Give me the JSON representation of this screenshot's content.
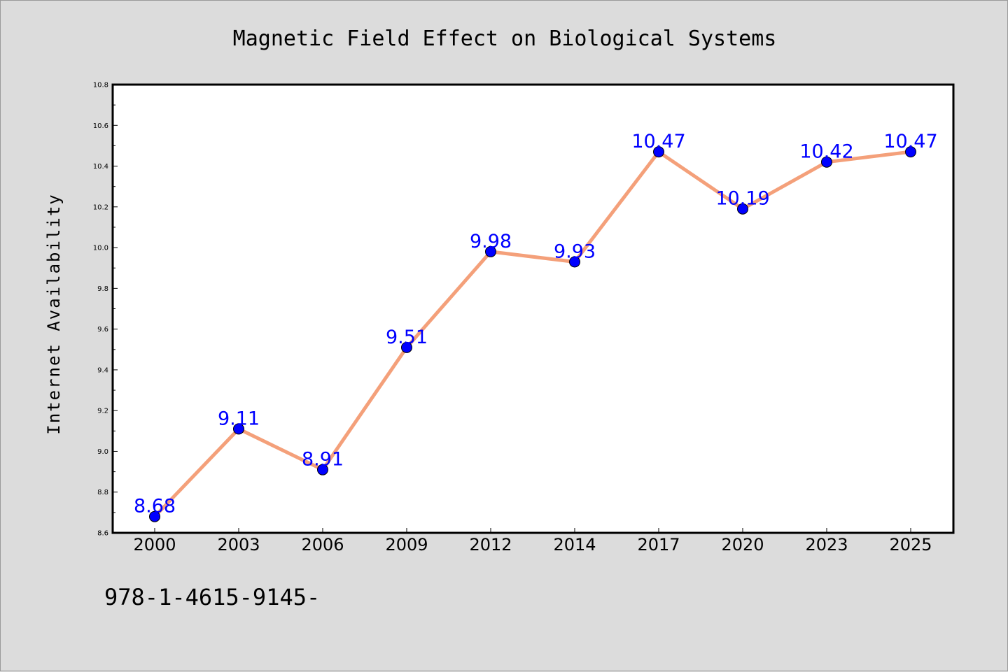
{
  "chart_data": {
    "type": "line",
    "title": "Magnetic Field Effect on Biological Systems",
    "xlabel": "",
    "ylabel": "Internet Availability",
    "categories": [
      "2000",
      "2003",
      "2006",
      "2009",
      "2012",
      "2014",
      "2017",
      "2020",
      "2023",
      "2025"
    ],
    "series": [
      {
        "values": [
          8.68,
          9.11,
          8.91,
          9.51,
          9.98,
          9.93,
          10.47,
          10.19,
          10.42,
          10.47
        ],
        "data_labels": [
          "8.68",
          "9.11",
          "8.91",
          "9.51",
          "9.98",
          "9.93",
          "10.47",
          "10.19",
          "10.42",
          "10.47"
        ],
        "line_color": "#f4a07a",
        "marker_color": "#0000ff",
        "label_color": "#0000ff"
      }
    ],
    "ylim": [
      8.6,
      10.8
    ],
    "yticks": [
      "8.6",
      "8.8",
      "9.0",
      "9.2",
      "9.4",
      "9.6",
      "9.8",
      "10.0",
      "10.2",
      "10.4",
      "10.6",
      "10.8"
    ],
    "grid": false,
    "legend": "none"
  },
  "footer": {
    "code_text": "978-1-4615-9145-"
  },
  "colors": {
    "background": "#dcdcdc",
    "plot_background": "#ffffff"
  }
}
